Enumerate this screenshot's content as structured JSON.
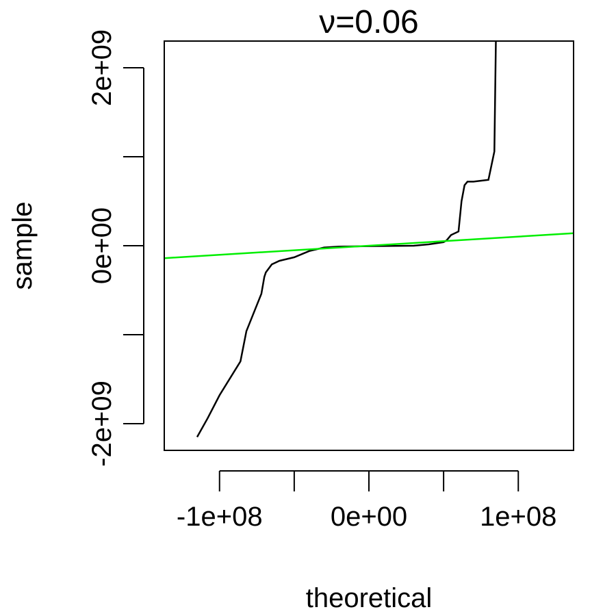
{
  "chart_data": {
    "type": "line",
    "title": "ν=0.06",
    "xlabel": "theoretical",
    "ylabel": "sample",
    "xlim": [
      -137000000,
      137000000
    ],
    "ylim": [
      -2300000000,
      2300000000
    ],
    "x_ticks": [
      {
        "value": -100000000,
        "label": "-1e+08"
      },
      {
        "value": -50000000,
        "label": ""
      },
      {
        "value": 0,
        "label": "0e+00"
      },
      {
        "value": 50000000,
        "label": ""
      },
      {
        "value": 100000000,
        "label": "1e+08"
      }
    ],
    "y_ticks": [
      {
        "value": -2000000000,
        "label": "-2e+09"
      },
      {
        "value": -1000000000,
        "label": ""
      },
      {
        "value": 0,
        "label": "0e+00"
      },
      {
        "value": 1000000000,
        "label": ""
      },
      {
        "value": 2000000000,
        "label": "2e+09"
      }
    ],
    "grid": false,
    "legend": "none",
    "series": [
      {
        "color": "#000000",
        "x": [
          -115000000,
          -108000000,
          -100000000,
          -86000000,
          -82000000,
          -72000000,
          -70000000,
          -69000000,
          -65000000,
          -60000000,
          -50000000,
          -40000000,
          -30000000,
          -20000000,
          0,
          30000000,
          40000000,
          50000000,
          52000000,
          55000000,
          60000000,
          62000000,
          64000000,
          66000000,
          70000000,
          80000000,
          84000000,
          85000000
        ],
        "y": [
          -2150000000,
          -1940000000,
          -1680000000,
          -1300000000,
          -960000000,
          -540000000,
          -350000000,
          -300000000,
          -210000000,
          -170000000,
          -130000000,
          -60000000,
          -20000000,
          -10000000,
          -5000000,
          0,
          15000000,
          40000000,
          60000000,
          120000000,
          160000000,
          500000000,
          680000000,
          720000000,
          720000000,
          740000000,
          1060000000,
          2300000000
        ]
      },
      {
        "color": "#00ee00",
        "x": [
          -137000000,
          137000000
        ],
        "y": [
          -140000000,
          140000000
        ]
      }
    ]
  }
}
